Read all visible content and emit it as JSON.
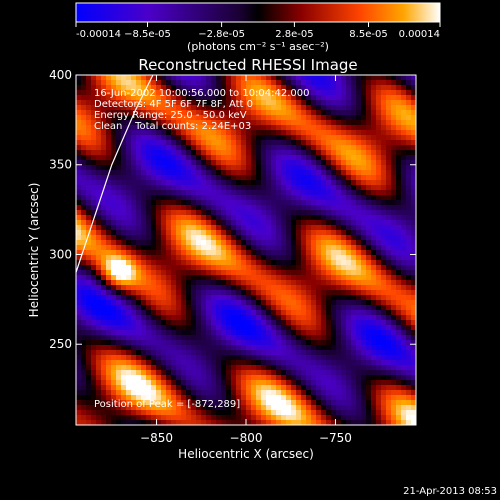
{
  "chart_data": {
    "type": "heatmap",
    "title": "Reconstructed RHESSI Image",
    "xlabel": "Heliocentric X (arcsec)",
    "ylabel": "Heliocentric Y (arcsec)",
    "xlim": [
      -895,
      -705
    ],
    "ylim": [
      205,
      400
    ],
    "x_ticks": [
      -850,
      -800,
      -750
    ],
    "y_ticks": [
      250,
      300,
      350,
      400
    ],
    "colorbar": {
      "range": [
        -0.00014,
        0.00014
      ],
      "ticks": [
        -0.00014,
        -8.5e-05,
        -2.8e-05,
        2.8e-05,
        8.5e-05,
        0.00014
      ],
      "tick_labels": [
        "-0.00014",
        "−8.5e-05",
        "−2.8e-05",
        "2.8e-05",
        "8.5e-05",
        "0.00014"
      ],
      "unit_label": "(photons cm⁻² s⁻¹ asec⁻²)"
    },
    "annotations": [
      "16-Jun-2002 10:00:56.000 to 10:04:42.000",
      "Detectors: 4F 5F 6F 7F 8F, Att 0",
      "Energy Range: 25.0 - 50.0 keV",
      "Clean    Total counts: 2.24E+03",
      "Position of Peak = [-872,289]"
    ],
    "peak_position": [
      -872,
      289
    ],
    "limb_curve": [
      [
        -895,
        290
      ],
      [
        -885,
        320
      ],
      [
        -875,
        350
      ],
      [
        -862,
        380
      ],
      [
        -852,
        400
      ]
    ],
    "grid": false
  },
  "footer": {
    "timestamp": "21-Apr-2013 08:53"
  }
}
